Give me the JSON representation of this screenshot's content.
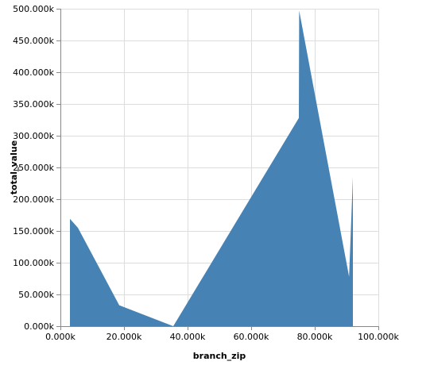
{
  "chart_data": {
    "type": "area",
    "title": "",
    "xlabel": "branch_zip",
    "ylabel": "total_value",
    "xlim": [
      0,
      100000
    ],
    "ylim": [
      0,
      500000
    ],
    "grid": true,
    "color": "#4682b4",
    "x_ticks": [
      "0.000k",
      "20.000k",
      "40.000k",
      "60.000k",
      "80.000k",
      "100.000k"
    ],
    "y_ticks": [
      "0.000k",
      "50.000k",
      "100.000k",
      "150.000k",
      "200.000k",
      "250.000k",
      "300.000k",
      "350.000k",
      "400.000k",
      "450.000k",
      "500.000k"
    ],
    "x_tick_values": [
      0,
      20000,
      40000,
      60000,
      80000,
      100000
    ],
    "y_tick_values": [
      0,
      50000,
      100000,
      150000,
      200000,
      250000,
      300000,
      350000,
      400000,
      450000,
      500000
    ],
    "points": [
      {
        "x": 3000,
        "y": 169000
      },
      {
        "x": 5500,
        "y": 155000
      },
      {
        "x": 18500,
        "y": 33000
      },
      {
        "x": 35500,
        "y": 0
      },
      {
        "x": 75000,
        "y": 328000
      },
      {
        "x": 75100,
        "y": 497000
      },
      {
        "x": 90800,
        "y": 78000
      },
      {
        "x": 92000,
        "y": 235000
      }
    ]
  }
}
